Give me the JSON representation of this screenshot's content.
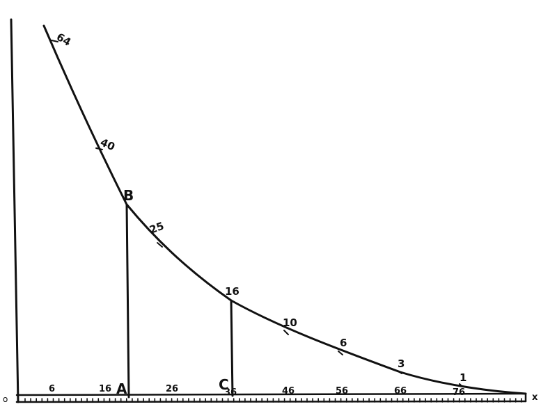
{
  "diagram": {
    "origin_label": "o",
    "x_axis_label": "x",
    "point_labels": {
      "b": "B",
      "a": "A",
      "c": "C"
    },
    "curve_values": [
      "64",
      "40",
      "25",
      "16",
      "10",
      "6",
      "3",
      "1"
    ],
    "axis_tick_labels": [
      "6",
      "16",
      "26",
      "36",
      "46",
      "56",
      "66",
      "76"
    ]
  }
}
